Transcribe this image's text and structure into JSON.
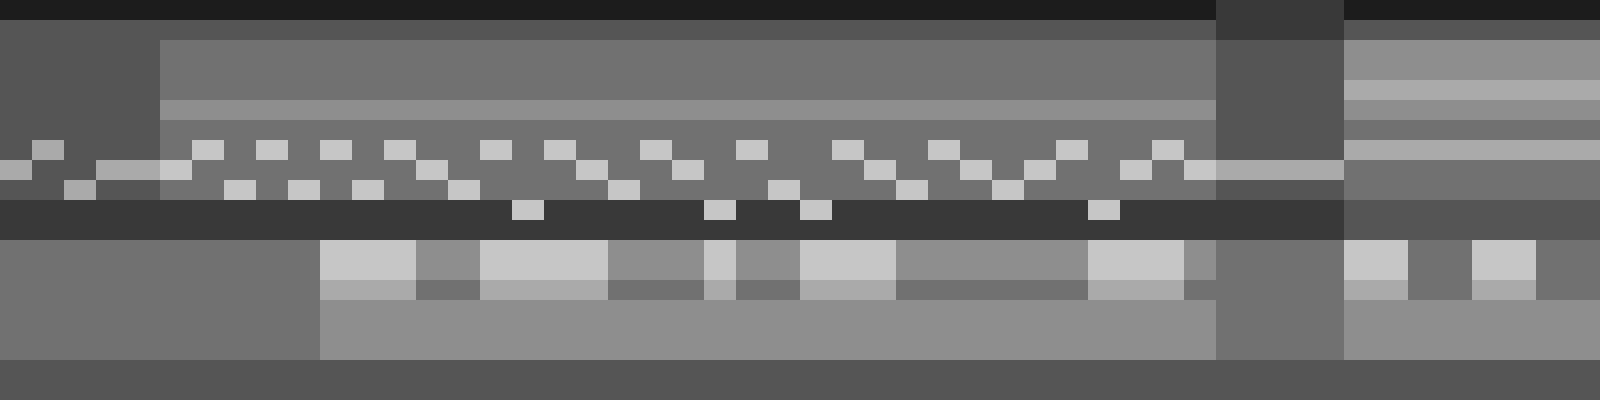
{
  "chart_data": {
    "type": "heatmap",
    "tick_labels": false,
    "zlim": [
      0,
      9
    ],
    "cells": [
      [
        1,
        3,
        3,
        3,
        3,
        3,
        3,
        3,
        6,
        3,
        2,
        2,
        4,
        4,
        4,
        4,
        4,
        4,
        3,
        3
      ],
      [
        1,
        3,
        3,
        3,
        3,
        3,
        3,
        6,
        3,
        3,
        2,
        2,
        4,
        4,
        4,
        4,
        4,
        4,
        3,
        3
      ],
      [
        1,
        3,
        3,
        3,
        3,
        3,
        3,
        3,
        3,
        6,
        2,
        2,
        4,
        4,
        4,
        4,
        4,
        4,
        3,
        3
      ],
      [
        1,
        3,
        3,
        3,
        3,
        3,
        3,
        3,
        6,
        3,
        2,
        2,
        4,
        4,
        4,
        4,
        4,
        4,
        3,
        3
      ],
      [
        1,
        3,
        3,
        3,
        3,
        3,
        3,
        3,
        6,
        3,
        2,
        2,
        4,
        4,
        4,
        4,
        4,
        4,
        3,
        3
      ],
      [
        1,
        3,
        4,
        4,
        4,
        5,
        4,
        4,
        7,
        4,
        2,
        2,
        4,
        4,
        4,
        4,
        4,
        4,
        3,
        3
      ],
      [
        1,
        3,
        4,
        4,
        4,
        5,
        4,
        7,
        4,
        4,
        2,
        2,
        4,
        4,
        4,
        4,
        4,
        4,
        3,
        3
      ],
      [
        1,
        3,
        4,
        4,
        4,
        5,
        4,
        4,
        4,
        7,
        2,
        2,
        4,
        4,
        4,
        4,
        4,
        4,
        3,
        3
      ],
      [
        1,
        3,
        4,
        4,
        4,
        5,
        4,
        7,
        4,
        4,
        2,
        2,
        4,
        4,
        4,
        4,
        4,
        4,
        3,
        3
      ],
      [
        1,
        3,
        4,
        4,
        4,
        5,
        4,
        4,
        4,
        7,
        2,
        2,
        4,
        4,
        4,
        4,
        4,
        4,
        3,
        3
      ],
      [
        1,
        3,
        4,
        4,
        4,
        5,
        4,
        7,
        4,
        4,
        2,
        2,
        7,
        7,
        6,
        5,
        5,
        5,
        3,
        3
      ],
      [
        1,
        3,
        4,
        4,
        4,
        5,
        4,
        4,
        4,
        7,
        2,
        2,
        7,
        7,
        6,
        5,
        5,
        5,
        3,
        3
      ],
      [
        1,
        3,
        4,
        4,
        4,
        5,
        4,
        7,
        4,
        4,
        2,
        2,
        7,
        7,
        6,
        5,
        5,
        5,
        3,
        3
      ],
      [
        1,
        3,
        4,
        4,
        4,
        5,
        4,
        4,
        7,
        4,
        2,
        2,
        5,
        5,
        4,
        5,
        5,
        5,
        3,
        3
      ],
      [
        1,
        3,
        4,
        4,
        4,
        5,
        4,
        4,
        4,
        7,
        2,
        2,
        5,
        5,
        4,
        5,
        5,
        5,
        3,
        3
      ],
      [
        1,
        3,
        4,
        4,
        4,
        5,
        4,
        7,
        4,
        4,
        2,
        2,
        7,
        7,
        6,
        5,
        5,
        5,
        3,
        3
      ],
      [
        1,
        3,
        4,
        4,
        4,
        5,
        4,
        4,
        4,
        4,
        7,
        2,
        7,
        7,
        6,
        5,
        5,
        5,
        3,
        3
      ],
      [
        1,
        3,
        4,
        4,
        4,
        5,
        4,
        7,
        4,
        4,
        2,
        2,
        7,
        7,
        6,
        5,
        5,
        5,
        3,
        3
      ],
      [
        1,
        3,
        4,
        4,
        4,
        5,
        4,
        4,
        7,
        4,
        2,
        2,
        7,
        7,
        6,
        5,
        5,
        5,
        3,
        3
      ],
      [
        1,
        3,
        4,
        4,
        4,
        5,
        4,
        4,
        4,
        7,
        2,
        2,
        5,
        5,
        4,
        5,
        5,
        5,
        3,
        3
      ],
      [
        1,
        3,
        4,
        4,
        4,
        5,
        4,
        7,
        4,
        4,
        2,
        2,
        5,
        5,
        4,
        5,
        5,
        5,
        3,
        3
      ],
      [
        1,
        3,
        4,
        4,
        4,
        5,
        4,
        4,
        7,
        4,
        2,
        2,
        5,
        5,
        4,
        5,
        5,
        5,
        3,
        3
      ],
      [
        1,
        3,
        4,
        4,
        4,
        5,
        4,
        4,
        4,
        4,
        7,
        2,
        7,
        7,
        6,
        5,
        5,
        5,
        3,
        3
      ],
      [
        1,
        3,
        4,
        4,
        4,
        5,
        4,
        7,
        4,
        4,
        2,
        2,
        5,
        5,
        4,
        5,
        5,
        5,
        3,
        3
      ],
      [
        1,
        3,
        4,
        4,
        4,
        5,
        4,
        4,
        4,
        7,
        2,
        2,
        5,
        5,
        4,
        5,
        5,
        5,
        3,
        3
      ],
      [
        1,
        3,
        4,
        4,
        4,
        5,
        4,
        4,
        4,
        4,
        7,
        2,
        7,
        7,
        6,
        5,
        5,
        5,
        3,
        3
      ],
      [
        1,
        3,
        4,
        4,
        4,
        5,
        4,
        7,
        4,
        4,
        2,
        2,
        7,
        7,
        6,
        5,
        5,
        5,
        3,
        3
      ],
      [
        1,
        3,
        4,
        4,
        4,
        5,
        4,
        4,
        7,
        4,
        2,
        2,
        7,
        7,
        6,
        5,
        5,
        5,
        3,
        3
      ],
      [
        1,
        3,
        4,
        4,
        4,
        5,
        4,
        4,
        4,
        7,
        2,
        2,
        5,
        5,
        4,
        5,
        5,
        5,
        3,
        3
      ],
      [
        1,
        3,
        4,
        4,
        4,
        5,
        4,
        7,
        4,
        4,
        2,
        2,
        5,
        5,
        4,
        5,
        5,
        5,
        3,
        3
      ],
      [
        1,
        3,
        4,
        4,
        4,
        5,
        4,
        4,
        7,
        4,
        2,
        2,
        5,
        5,
        4,
        5,
        5,
        5,
        3,
        3
      ],
      [
        1,
        3,
        4,
        4,
        4,
        5,
        4,
        4,
        4,
        7,
        2,
        2,
        5,
        5,
        4,
        5,
        5,
        5,
        3,
        3
      ],
      [
        1,
        3,
        4,
        4,
        4,
        5,
        4,
        4,
        7,
        4,
        2,
        2,
        5,
        5,
        4,
        5,
        5,
        5,
        3,
        3
      ],
      [
        1,
        3,
        4,
        4,
        4,
        5,
        4,
        7,
        4,
        4,
        2,
        2,
        5,
        5,
        4,
        5,
        5,
        5,
        3,
        3
      ],
      [
        1,
        3,
        4,
        4,
        4,
        5,
        4,
        4,
        4,
        4,
        7,
        2,
        7,
        7,
        6,
        5,
        5,
        5,
        3,
        3
      ],
      [
        1,
        3,
        4,
        4,
        4,
        5,
        4,
        4,
        7,
        4,
        2,
        2,
        7,
        7,
        6,
        5,
        5,
        5,
        3,
        3
      ],
      [
        1,
        3,
        4,
        4,
        4,
        5,
        4,
        7,
        4,
        4,
        2,
        2,
        7,
        7,
        6,
        5,
        5,
        5,
        3,
        3
      ],
      [
        1,
        3,
        4,
        4,
        4,
        5,
        4,
        4,
        7,
        4,
        2,
        2,
        5,
        5,
        4,
        5,
        5,
        5,
        3,
        3
      ],
      [
        2,
        2,
        3,
        3,
        3,
        3,
        3,
        3,
        6,
        3,
        2,
        2,
        4,
        4,
        4,
        4,
        4,
        4,
        3,
        3
      ],
      [
        2,
        2,
        3,
        3,
        3,
        3,
        3,
        3,
        6,
        3,
        2,
        2,
        4,
        4,
        4,
        4,
        4,
        4,
        3,
        3
      ],
      [
        2,
        2,
        3,
        3,
        3,
        3,
        3,
        3,
        6,
        3,
        2,
        2,
        4,
        4,
        4,
        4,
        4,
        4,
        3,
        3
      ],
      [
        2,
        2,
        3,
        3,
        3,
        3,
        3,
        3,
        6,
        3,
        2,
        2,
        4,
        4,
        4,
        4,
        4,
        4,
        3,
        3
      ],
      [
        1,
        3,
        5,
        5,
        6,
        5,
        4,
        6,
        4,
        4,
        3,
        3,
        7,
        7,
        6,
        5,
        5,
        5,
        3,
        3
      ],
      [
        1,
        3,
        5,
        5,
        6,
        5,
        4,
        6,
        4,
        4,
        3,
        3,
        7,
        7,
        6,
        5,
        5,
        5,
        3,
        3
      ],
      [
        1,
        3,
        5,
        5,
        6,
        5,
        4,
        6,
        4,
        4,
        3,
        3,
        4,
        4,
        4,
        5,
        5,
        5,
        3,
        3
      ],
      [
        1,
        3,
        5,
        5,
        6,
        5,
        4,
        6,
        4,
        4,
        3,
        3,
        4,
        4,
        4,
        5,
        5,
        5,
        3,
        3
      ],
      [
        1,
        3,
        5,
        5,
        6,
        5,
        4,
        6,
        4,
        4,
        3,
        3,
        7,
        7,
        6,
        5,
        5,
        5,
        3,
        3
      ],
      [
        1,
        3,
        5,
        5,
        6,
        5,
        4,
        6,
        4,
        4,
        3,
        3,
        7,
        7,
        6,
        5,
        5,
        5,
        3,
        3
      ],
      [
        1,
        3,
        5,
        5,
        6,
        5,
        4,
        6,
        4,
        4,
        3,
        3,
        4,
        4,
        4,
        5,
        5,
        5,
        3,
        3
      ],
      [
        1,
        3,
        5,
        5,
        6,
        5,
        4,
        6,
        4,
        4,
        3,
        3,
        4,
        4,
        4,
        5,
        5,
        5,
        3,
        3
      ]
    ]
  }
}
